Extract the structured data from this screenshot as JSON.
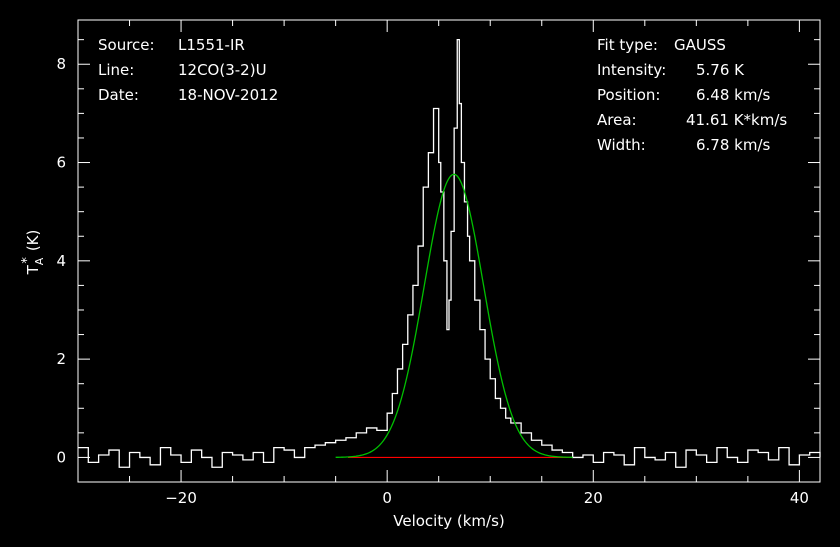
{
  "chart_data": {
    "type": "line",
    "title": "",
    "xlabel": "Velocity (km/s)",
    "ylabel": "T",
    "ylabel_sub": "A",
    "ylabel_sup": "*",
    "ylabel_unit": "(K)",
    "xlim": [
      -30,
      42
    ],
    "ylim": [
      -0.5,
      8.9
    ],
    "x_ticks": [
      -20,
      0,
      20,
      40
    ],
    "x_tick_labels": [
      "−20",
      "0",
      "20",
      "40"
    ],
    "y_ticks": [
      0,
      2,
      4,
      6,
      8
    ],
    "y_tick_labels": [
      "0",
      "2",
      "4",
      "6",
      "8"
    ],
    "grid": false,
    "series": [
      {
        "color": "#ffffff",
        "style": "histogram",
        "x": [
          -30,
          -29,
          -28,
          -27,
          -26,
          -25,
          -24,
          -23,
          -22,
          -21,
          -20,
          -19,
          -18,
          -17,
          -16,
          -15,
          -14,
          -13,
          -12,
          -11,
          -10,
          -9,
          -8,
          -7,
          -6,
          -5,
          -4,
          -3,
          -2,
          -1,
          0,
          0.5,
          1,
          1.5,
          2,
          2.5,
          3,
          3.5,
          4,
          4.5,
          5,
          5.2,
          5.5,
          5.8,
          6,
          6.2,
          6.5,
          6.8,
          7,
          7.2,
          7.5,
          7.8,
          8,
          8.5,
          9,
          9.5,
          10,
          10.5,
          11,
          11.5,
          12,
          13,
          14,
          15,
          16,
          17,
          18,
          19,
          20,
          21,
          22,
          23,
          24,
          25,
          26,
          27,
          28,
          29,
          30,
          31,
          32,
          33,
          34,
          35,
          36,
          37,
          38,
          39,
          40,
          41,
          42
        ],
        "y": [
          0.2,
          -0.1,
          0.05,
          0.15,
          -0.2,
          0.1,
          0.0,
          -0.15,
          0.2,
          0.05,
          -0.1,
          0.15,
          0.0,
          -0.2,
          0.1,
          0.05,
          -0.05,
          0.1,
          -0.1,
          0.2,
          0.15,
          0.0,
          0.2,
          0.25,
          0.3,
          0.35,
          0.4,
          0.5,
          0.6,
          0.55,
          0.9,
          1.3,
          1.8,
          2.3,
          2.9,
          3.5,
          4.3,
          5.5,
          6.2,
          7.1,
          6.0,
          5.4,
          4.0,
          2.6,
          3.2,
          4.6,
          6.7,
          8.5,
          7.2,
          6.0,
          5.2,
          4.5,
          4.0,
          3.2,
          2.6,
          2.0,
          1.6,
          1.2,
          1.0,
          0.8,
          0.7,
          0.5,
          0.35,
          0.25,
          0.15,
          0.1,
          0.0,
          0.05,
          -0.1,
          0.1,
          0.05,
          -0.15,
          0.2,
          0.0,
          -0.05,
          0.1,
          -0.2,
          0.15,
          0.05,
          -0.1,
          0.2,
          0.0,
          -0.1,
          0.15,
          0.1,
          -0.05,
          0.2,
          -0.15,
          0.05,
          0.1,
          0.0
        ]
      },
      {
        "color": "#00c000",
        "style": "gaussian-fit",
        "fit_amplitude": 5.76,
        "fit_center": 6.48,
        "fit_fwhm": 6.78,
        "x_range": [
          -5,
          18
        ]
      },
      {
        "color": "#ff0000",
        "style": "baseline",
        "x": [
          -3.8,
          18
        ],
        "y": [
          0,
          0
        ]
      }
    ]
  },
  "info_left": [
    {
      "label": "Source:",
      "value": "L1551-IR"
    },
    {
      "label": "Line:",
      "value": "12CO(3-2)U"
    },
    {
      "label": "Date:",
      "value": "18-NOV-2012"
    }
  ],
  "info_right": {
    "fit_type_label": "Fit type:",
    "fit_type_value": "GAUSS",
    "rows": [
      {
        "label": "Intensity:",
        "value": "5.76 K"
      },
      {
        "label": "Position:",
        "value": "6.48 km/s"
      },
      {
        "label": "Area:",
        "value": "41.61 K*km/s"
      },
      {
        "label": "Width:",
        "value": "6.78 km/s"
      }
    ]
  }
}
